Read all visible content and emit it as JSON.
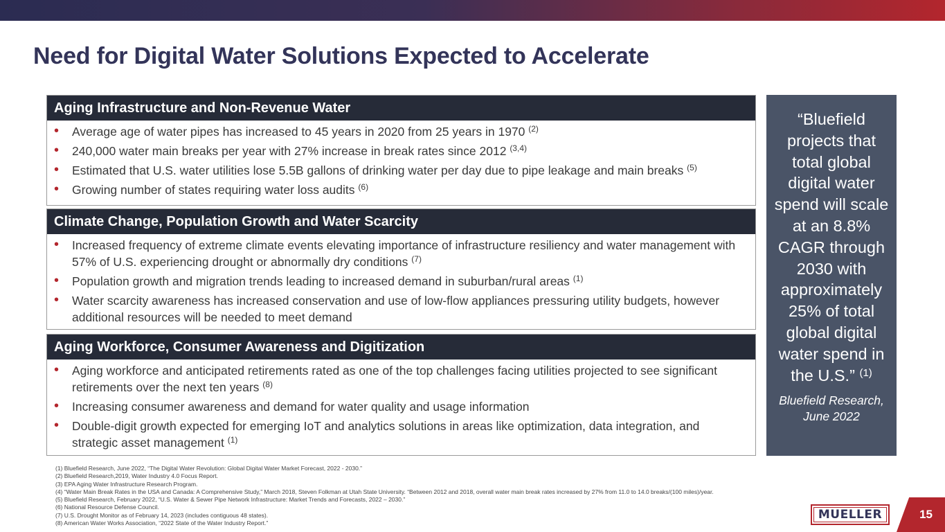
{
  "page": {
    "title": "Need for Digital Water Solutions Expected to Accelerate",
    "page_number": "15",
    "logo_text": "MUELLER"
  },
  "colors": {
    "title": "#333459",
    "header_bar": "#262b38",
    "bullet_accent": "#b3262d",
    "quote_box": "#4a5467"
  },
  "sections": [
    {
      "heading": "Aging Infrastructure and Non-Revenue Water",
      "bullets": [
        {
          "text": "Average age of water pipes has increased to 45 years in 2020 from 25 years in 1970",
          "ref": "(2)"
        },
        {
          "text": "240,000 water main breaks per year with 27% increase in break rates since 2012",
          "ref": "(3,4)"
        },
        {
          "text": "Estimated that U.S. water utilities lose 5.5B gallons of drinking water per day due to pipe leakage and main breaks",
          "ref": "(5)"
        },
        {
          "text": "Growing number of states requiring water loss audits",
          "ref": "(6)"
        }
      ]
    },
    {
      "heading": "Climate Change, Population Growth and Water Scarcity",
      "bullets": [
        {
          "text": "Increased frequency of extreme climate events elevating importance of infrastructure resiliency and water management with 57% of U.S. experiencing drought or abnormally dry conditions",
          "ref": "(7)"
        },
        {
          "text": "Population growth and migration trends leading to increased demand in suburban/rural areas",
          "ref": "(1)"
        },
        {
          "text": "Water scarcity awareness has increased conservation and use of low-flow appliances pressuring utility budgets, however additional resources will be needed to meet demand",
          "ref": ""
        }
      ]
    },
    {
      "heading": "Aging Workforce, Consumer Awareness and Digitization",
      "bullets": [
        {
          "text": "Aging workforce and anticipated retirements rated as one of the top challenges facing utilities projected to see significant retirements over the next ten years",
          "ref": "(8)"
        },
        {
          "text": "Increasing consumer awareness and demand for water quality and usage information",
          "ref": ""
        },
        {
          "text": "Double-digit growth expected for emerging IoT and analytics solutions in areas like optimization, data integration, and strategic asset management",
          "ref": "(1)"
        }
      ]
    }
  ],
  "quote": {
    "text": "“Bluefield projects that total global digital water spend will scale at an 8.8% CAGR through 2030 with approximately 25% of total global digital water spend in the U.S.”",
    "ref": "(1)",
    "source": "Bluefield Research, June 2022"
  },
  "footnotes": [
    "(1)   Bluefield Research, June 2022, “The Digital Water Revolution:  Global Digital Water Market Forecast, 2022 - 2030.”",
    "(2)   Bluefield Research,2019, Water Industry 4.0 Focus Report.",
    "(3)   EPA Aging Water Infrastructure Research Program.",
    "(4)   “Water Main Break Rates in the USA and Canada:  A Comprehensive Study,” March 2018, Steven Folkman at Utah State University.  “Between 2012 and 2018, overall water main break rates increased by 27% from 11.0 to 14.0 breaks/(100 miles)/year.",
    "(5)   Bluefield Research, February 2022, “U.S. Water & Sewer Pipe Network Infrastructure: Market Trends and Forecasts, 2022 – 2030.”",
    "(6)   National Resource Defense Council.",
    "(7)   U.S. Drought Monitor as of February 14, 2023 (includes contiguous 48 states).",
    "(8)   American Water Works Association, “2022 State of the Water Industry Report.”"
  ]
}
